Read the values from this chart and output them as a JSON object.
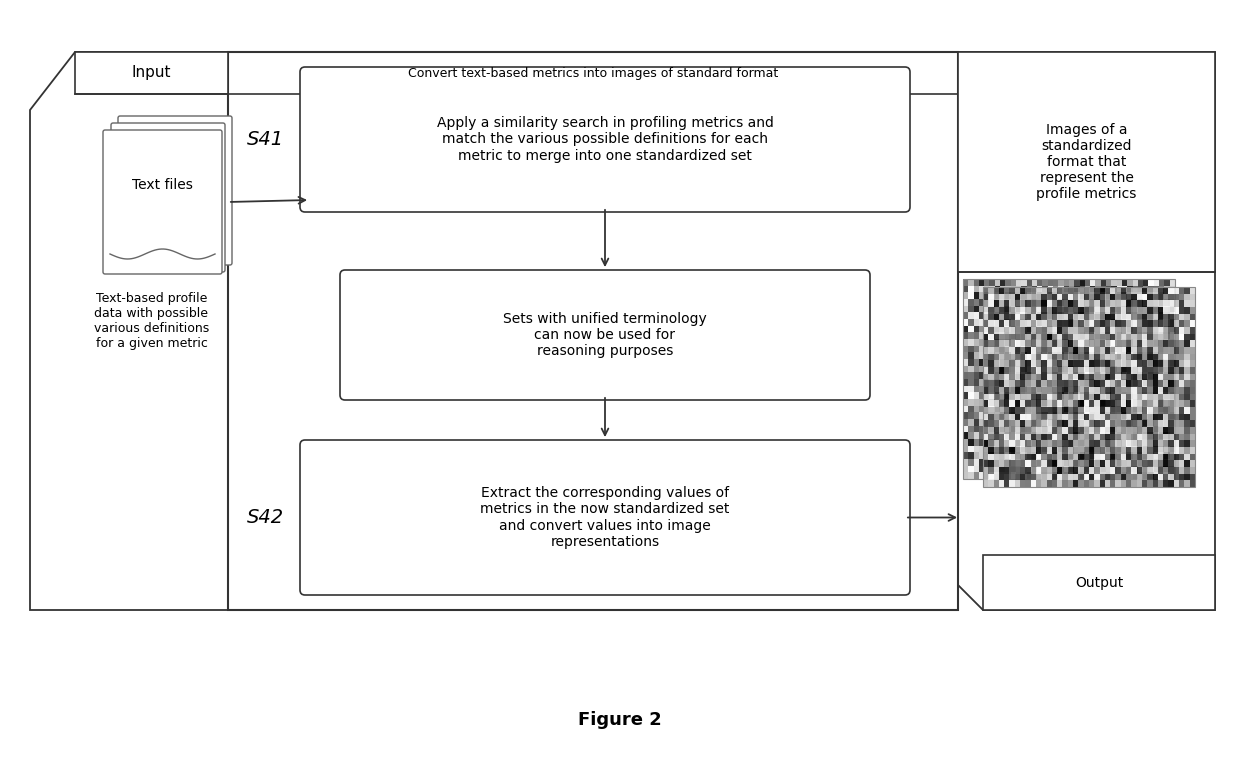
{
  "title": "Figure 2",
  "bg_color": "#ffffff",
  "main_box_label": "Convert text-based metrics into images of standard format",
  "input_label": "Input",
  "input_sub": "Text-based profile\ndata with possible\nvarious definitions\nfor a given metric",
  "text_files_label": "Text files",
  "output_label": "Output",
  "output_img_text": "Images of a\nstandardized\nformat that\nrepresent the\nprofile metrics",
  "step1_label": "Apply a similarity search in profiling metrics and\nmatch the various possible definitions for each\nmetric to merge into one standardized set",
  "step1_id": "S41",
  "step2_label": "Sets with unified terminology\ncan now be used for\nreasoning purposes",
  "step3_label": "Extract the corresponding values of\nmetrics in the now standardized set\nand convert values into image\nrepresentations",
  "step3_id": "S42",
  "edge_color": "#333333",
  "font_size": 9,
  "font_size_title": 9,
  "font_size_step_id": 14,
  "font_size_caption": 13
}
